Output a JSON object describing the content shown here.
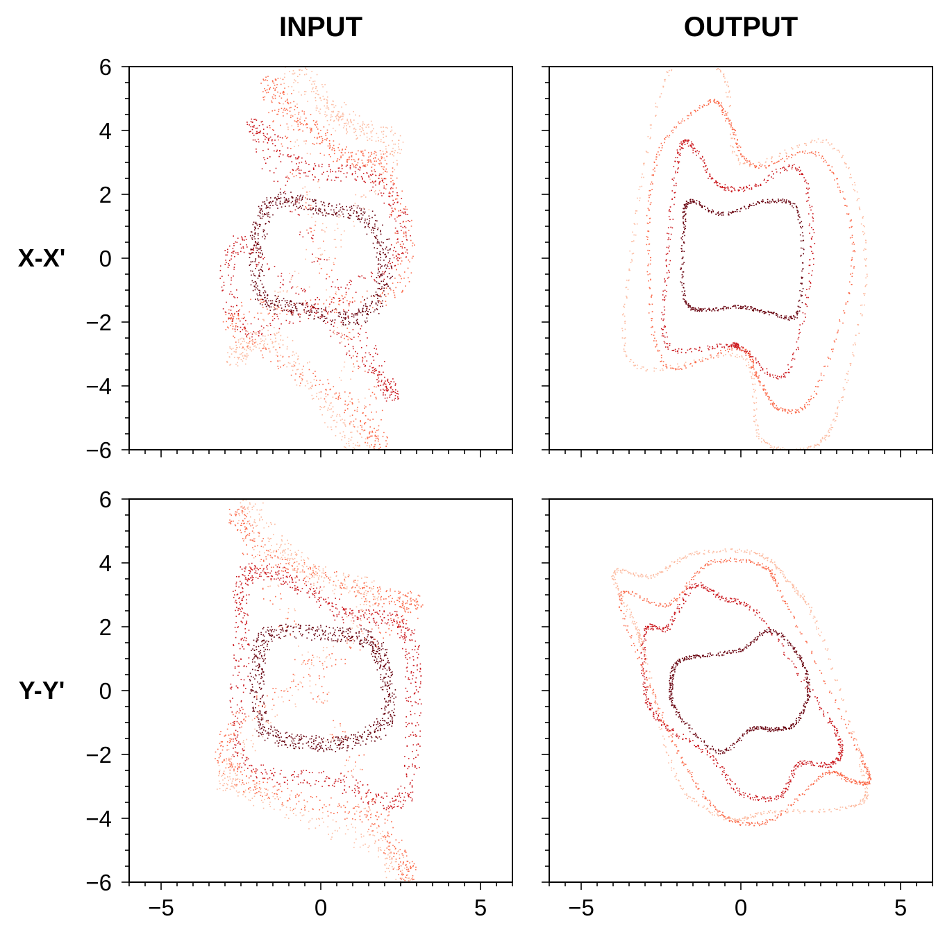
{
  "figure": {
    "column_titles": [
      "INPUT",
      "OUTPUT"
    ],
    "row_labels": [
      "X-X'",
      "Y-Y'"
    ]
  },
  "colors": {
    "ring_1": "#fcbba1",
    "ring_2": "#fb6a4a",
    "ring_3": "#cb181d",
    "ring_4": "#67000d"
  },
  "chart_data": [
    {
      "type": "scatter",
      "panel": "X-X' INPUT",
      "xlim": [
        -6,
        6
      ],
      "ylim": [
        -6,
        6
      ],
      "xticks": [
        -5,
        0,
        5
      ],
      "yticks": [
        -6,
        -4,
        -2,
        0,
        2,
        4,
        6
      ],
      "xtick_labels": [],
      "ytick_labels": [
        "6",
        "4",
        "2",
        "0",
        "−2",
        "−4",
        "−6"
      ],
      "grid": false,
      "series": [
        {
          "color": "#fcbba1",
          "values": [
            [
              -1.0,
              5.7
            ],
            [
              0.0,
              4.9
            ],
            [
              1.0,
              4.1
            ],
            [
              2.1,
              3.0
            ],
            [
              -2.5,
              -2.8
            ],
            [
              -1.5,
              -2.5
            ],
            [
              0.5,
              -5.0
            ],
            [
              1.3,
              -5.8
            ]
          ]
        },
        {
          "color": "#fb6a4a",
          "values": [
            [
              -1.5,
              4.8
            ],
            [
              -0.6,
              4.3
            ],
            [
              0.7,
              3.2
            ],
            [
              2.0,
              2.8
            ],
            [
              2.3,
              -1.0
            ],
            [
              -2.8,
              -1.8
            ],
            [
              0.5,
              -4.3
            ],
            [
              1.8,
              -5.3
            ]
          ]
        },
        {
          "color": "#cb181d",
          "values": [
            [
              -2.0,
              3.8
            ],
            [
              -0.5,
              2.8
            ],
            [
              1.8,
              2.4
            ],
            [
              2.3,
              0.0
            ],
            [
              -2.3,
              -2.2
            ],
            [
              -2.5,
              0.5
            ],
            [
              1.2,
              -3.0
            ],
            [
              2.0,
              -3.8
            ]
          ]
        },
        {
          "color": "#67000d",
          "values": [
            [
              -1.4,
              1.8
            ],
            [
              0.0,
              1.6
            ],
            [
              1.5,
              1.2
            ],
            [
              2.0,
              -0.5
            ],
            [
              1.2,
              -1.8
            ],
            [
              -0.5,
              -1.6
            ],
            [
              -1.8,
              -1.2
            ],
            [
              -2.0,
              0.6
            ]
          ]
        }
      ]
    },
    {
      "type": "scatter",
      "panel": "X-X' OUTPUT",
      "xlim": [
        -6,
        6
      ],
      "ylim": [
        -6,
        6
      ],
      "xticks": [
        -5,
        0,
        5
      ],
      "yticks": [
        -6,
        -4,
        -2,
        0,
        2,
        4,
        6
      ],
      "xtick_labels": [],
      "ytick_labels": [],
      "grid": false,
      "series": [
        {
          "color": "#fcbba1",
          "values": [
            [
              -2.3,
              5.8
            ],
            [
              -0.6,
              5.8
            ],
            [
              0.0,
              3.0
            ],
            [
              2.8,
              3.6
            ],
            [
              3.9,
              0.0
            ],
            [
              3.1,
              -4.5
            ],
            [
              2.2,
              -5.9
            ],
            [
              0.6,
              -5.6
            ],
            [
              0.0,
              -3.1
            ],
            [
              -3.4,
              -3.3
            ],
            [
              -3.4,
              0.5
            ]
          ]
        },
        {
          "color": "#fb6a4a",
          "values": [
            [
              -1.0,
              4.9
            ],
            [
              -0.4,
              4.3
            ],
            [
              0.4,
              2.9
            ],
            [
              2.5,
              3.2
            ],
            [
              3.5,
              0.0
            ],
            [
              2.3,
              -4.2
            ],
            [
              1.2,
              -4.7
            ],
            [
              0.5,
              -3.7
            ],
            [
              -0.1,
              -2.8
            ],
            [
              -2.4,
              -3.3
            ],
            [
              -2.9,
              0.0
            ],
            [
              -2.6,
              3.3
            ]
          ]
        },
        {
          "color": "#cb181d",
          "values": [
            [
              -1.6,
              3.6
            ],
            [
              -0.8,
              2.4
            ],
            [
              0.2,
              2.2
            ],
            [
              1.8,
              2.8
            ],
            [
              2.2,
              0.0
            ],
            [
              1.4,
              -3.6
            ],
            [
              0.0,
              -2.8
            ],
            [
              -0.4,
              -2.7
            ],
            [
              -2.3,
              -2.7
            ],
            [
              -2.3,
              0.0
            ],
            [
              -2.0,
              3.1
            ]
          ]
        },
        {
          "color": "#67000d",
          "values": [
            [
              -1.6,
              1.8
            ],
            [
              -0.6,
              1.4
            ],
            [
              0.8,
              1.8
            ],
            [
              1.8,
              1.4
            ],
            [
              1.8,
              -1.6
            ],
            [
              0.9,
              -1.7
            ],
            [
              0.0,
              -1.5
            ],
            [
              -1.2,
              -1.6
            ],
            [
              -1.8,
              -1.2
            ],
            [
              -1.8,
              1.0
            ]
          ]
        }
      ]
    },
    {
      "type": "scatter",
      "panel": "Y-Y' INPUT",
      "xlim": [
        -6,
        6
      ],
      "ylim": [
        -6,
        6
      ],
      "xticks": [
        -5,
        0,
        5
      ],
      "yticks": [
        -6,
        -4,
        -2,
        0,
        2,
        4,
        6
      ],
      "xtick_labels": [
        "−5",
        "0",
        "5"
      ],
      "ytick_labels": [
        "6",
        "4",
        "2",
        "0",
        "−2",
        "−4",
        "−6"
      ],
      "grid": false,
      "series": [
        {
          "color": "#fcbba1",
          "values": [
            [
              -2.3,
              5.6
            ],
            [
              -1.3,
              4.5
            ],
            [
              0.0,
              3.5
            ],
            [
              1.5,
              2.7
            ],
            [
              -2.8,
              -2.2
            ],
            [
              -1.8,
              -3.3
            ],
            [
              2.0,
              -5.0
            ],
            [
              2.3,
              -5.8
            ]
          ]
        },
        {
          "color": "#fb6a4a",
          "values": [
            [
              -2.5,
              5.0
            ],
            [
              -1.3,
              4.0
            ],
            [
              1.8,
              3.0
            ],
            [
              2.6,
              2.4
            ],
            [
              -2.8,
              -1.2
            ],
            [
              -2.0,
              -3.0
            ],
            [
              1.5,
              -4.0
            ],
            [
              2.5,
              -5.2
            ]
          ]
        },
        {
          "color": "#cb181d",
          "values": [
            [
              -2.4,
              3.6
            ],
            [
              -1.0,
              3.5
            ],
            [
              0.8,
              2.4
            ],
            [
              2.5,
              2.1
            ],
            [
              2.9,
              0.0
            ],
            [
              2.5,
              -3.4
            ],
            [
              0.5,
              -2.8
            ],
            [
              -2.4,
              -2.2
            ],
            [
              -2.5,
              1.5
            ]
          ]
        },
        {
          "color": "#67000d",
          "values": [
            [
              -1.6,
              1.8
            ],
            [
              0.2,
              1.8
            ],
            [
              1.5,
              1.6
            ],
            [
              2.0,
              0.6
            ],
            [
              2.0,
              -1.0
            ],
            [
              0.8,
              -1.6
            ],
            [
              -0.5,
              -1.6
            ],
            [
              -1.8,
              -1.2
            ],
            [
              -2.0,
              0.6
            ]
          ]
        }
      ]
    },
    {
      "type": "scatter",
      "panel": "Y-Y' OUTPUT",
      "xlim": [
        -6,
        6
      ],
      "ylim": [
        -6,
        6
      ],
      "xticks": [
        -5,
        0,
        5
      ],
      "yticks": [
        -6,
        -4,
        -2,
        0,
        2,
        4,
        6
      ],
      "xtick_labels": [
        "−5",
        "0",
        "5"
      ],
      "ytick_labels": [],
      "grid": false,
      "series": [
        {
          "color": "#fcbba1",
          "values": [
            [
              -4.0,
              3.7
            ],
            [
              -2.8,
              3.6
            ],
            [
              -1.5,
              4.3
            ],
            [
              0.5,
              4.3
            ],
            [
              1.5,
              3.4
            ],
            [
              2.4,
              2.0
            ],
            [
              3.8,
              -2.5
            ],
            [
              3.5,
              -3.6
            ],
            [
              0.8,
              -3.8
            ],
            [
              -0.4,
              -4.0
            ],
            [
              -2.0,
              -2.8
            ],
            [
              -3.0,
              1.0
            ],
            [
              -3.3,
              2.0
            ]
          ]
        },
        {
          "color": "#fb6a4a",
          "values": [
            [
              -3.8,
              3.0
            ],
            [
              -2.3,
              2.7
            ],
            [
              -1.0,
              4.0
            ],
            [
              0.7,
              3.9
            ],
            [
              1.4,
              2.7
            ],
            [
              3.5,
              -1.5
            ],
            [
              4.0,
              -2.8
            ],
            [
              3.4,
              -2.8
            ],
            [
              2.6,
              -2.6
            ],
            [
              1.0,
              -4.0
            ],
            [
              -0.4,
              -4.0
            ],
            [
              -1.6,
              -2.6
            ],
            [
              -2.8,
              0.0
            ]
          ]
        },
        {
          "color": "#cb181d",
          "values": [
            [
              -3.0,
              1.9
            ],
            [
              -2.3,
              2.0
            ],
            [
              -1.5,
              3.3
            ],
            [
              -0.6,
              2.9
            ],
            [
              0.5,
              2.4
            ],
            [
              2.5,
              -0.5
            ],
            [
              3.1,
              -1.7
            ],
            [
              2.8,
              -2.3
            ],
            [
              1.8,
              -2.3
            ],
            [
              1.2,
              -3.3
            ],
            [
              0.0,
              -3.2
            ],
            [
              -1.0,
              -2.0
            ],
            [
              -2.5,
              -1.0
            ],
            [
              -3.0,
              0.0
            ]
          ]
        },
        {
          "color": "#67000d",
          "values": [
            [
              -2.0,
              0.9
            ],
            [
              -1.3,
              1.1
            ],
            [
              0.0,
              1.3
            ],
            [
              0.9,
              1.9
            ],
            [
              1.8,
              1.1
            ],
            [
              2.1,
              0.0
            ],
            [
              1.7,
              -1.0
            ],
            [
              1.0,
              -1.2
            ],
            [
              0.3,
              -1.2
            ],
            [
              -0.7,
              -1.9
            ],
            [
              -2.0,
              -0.7
            ],
            [
              -2.2,
              0.2
            ]
          ]
        }
      ]
    }
  ]
}
